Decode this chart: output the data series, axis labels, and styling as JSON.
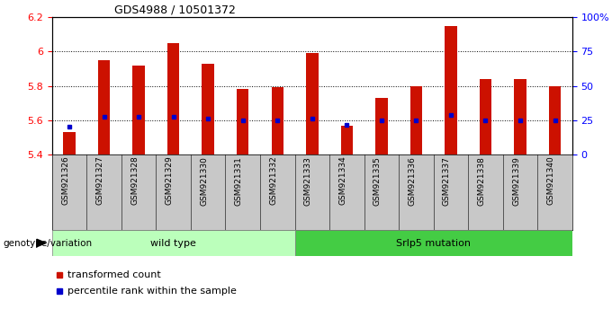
{
  "title": "GDS4988 / 10501372",
  "samples": [
    "GSM921326",
    "GSM921327",
    "GSM921328",
    "GSM921329",
    "GSM921330",
    "GSM921331",
    "GSM921332",
    "GSM921333",
    "GSM921334",
    "GSM921335",
    "GSM921336",
    "GSM921337",
    "GSM921338",
    "GSM921339",
    "GSM921340"
  ],
  "transformed_count": [
    5.53,
    5.95,
    5.92,
    6.05,
    5.93,
    5.78,
    5.79,
    5.99,
    5.57,
    5.73,
    5.8,
    6.15,
    5.84,
    5.84,
    5.8
  ],
  "percentile_rank": [
    5.56,
    5.62,
    5.62,
    5.62,
    5.61,
    5.6,
    5.6,
    5.61,
    5.575,
    5.6,
    5.6,
    5.63,
    5.6,
    5.6,
    5.6
  ],
  "ymin": 5.4,
  "ymax": 6.2,
  "bar_color": "#cc1100",
  "dot_color": "#0000cc",
  "plot_bg": "#ffffff",
  "sample_label_bg": "#c8c8c8",
  "wild_type_indices": [
    0,
    1,
    2,
    3,
    4,
    5,
    6
  ],
  "mutation_indices": [
    7,
    8,
    9,
    10,
    11,
    12,
    13,
    14
  ],
  "wild_type_label": "wild type",
  "mutation_label": "Srlp5 mutation",
  "wild_type_color": "#bbffbb",
  "mutation_color": "#44cc44",
  "genotype_label": "genotype/variation",
  "legend_count_label": "transformed count",
  "legend_pct_label": "percentile rank within the sample",
  "right_yticks": [
    0,
    25,
    50,
    75,
    100
  ],
  "right_yticklabels": [
    "0",
    "25",
    "50",
    "75",
    "100%"
  ],
  "left_yticks": [
    5.4,
    5.6,
    5.8,
    6.0,
    6.2
  ],
  "left_yticklabels": [
    "5.4",
    "5.6",
    "5.8",
    "6",
    "6.2"
  ]
}
